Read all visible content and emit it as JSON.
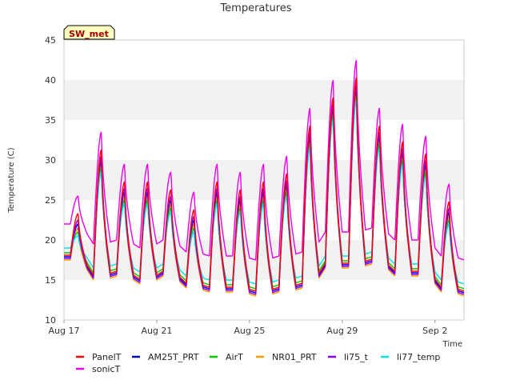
{
  "chart_data": {
    "type": "line",
    "title": "Temperatures",
    "xlabel": "Time",
    "ylabel": "Temperature (C)",
    "ylim": [
      10,
      45
    ],
    "xlim": [
      "2023-08-17",
      "2023-09-03"
    ],
    "grid": "horizontal bands",
    "legend_position": "bottom",
    "yticks": [
      10,
      15,
      20,
      25,
      30,
      35,
      40,
      45
    ],
    "xticks": [
      {
        "x": "2023-08-17",
        "label": "Aug 17"
      },
      {
        "x": "2023-08-21",
        "label": "Aug 21"
      },
      {
        "x": "2023-08-25",
        "label": "Aug 25"
      },
      {
        "x": "2023-08-29",
        "label": "Aug 29"
      },
      {
        "x": "2023-09-02",
        "label": "Sep 2"
      }
    ],
    "badge": "SW_met",
    "daily_extremes": [
      {
        "date": "2023-08-17",
        "min": 17.5,
        "max": 23.0
      },
      {
        "date": "2023-08-18",
        "min": 15.0,
        "max": 31.0
      },
      {
        "date": "2023-08-19",
        "min": 15.5,
        "max": 27.0
      },
      {
        "date": "2023-08-20",
        "min": 14.5,
        "max": 27.0
      },
      {
        "date": "2023-08-21",
        "min": 15.5,
        "max": 26.0
      },
      {
        "date": "2023-08-22",
        "min": 14.0,
        "max": 23.5
      },
      {
        "date": "2023-08-23",
        "min": 13.5,
        "max": 27.0
      },
      {
        "date": "2023-08-24",
        "min": 13.5,
        "max": 26.0
      },
      {
        "date": "2023-08-25",
        "min": 13.0,
        "max": 27.0
      },
      {
        "date": "2023-08-26",
        "min": 13.5,
        "max": 28.0
      },
      {
        "date": "2023-08-27",
        "min": 14.0,
        "max": 34.0
      },
      {
        "date": "2023-08-28",
        "min": 16.5,
        "max": 37.5
      },
      {
        "date": "2023-08-29",
        "min": 16.5,
        "max": 40.0
      },
      {
        "date": "2023-08-30",
        "min": 17.0,
        "max": 34.0
      },
      {
        "date": "2023-08-31",
        "min": 15.5,
        "max": 32.0
      },
      {
        "date": "2023-09-01",
        "min": 15.5,
        "max": 30.5
      },
      {
        "date": "2023-09-02",
        "min": 13.5,
        "max": 24.5
      },
      {
        "date": "2023-09-03",
        "min": 13.0,
        "max": 19.0
      }
    ],
    "series": [
      {
        "name": "PanelT",
        "color": "#ff0000",
        "min_offset": 0.6,
        "max_offset": 0.3
      },
      {
        "name": "AM25T_PRT",
        "color": "#0000cc",
        "min_offset": 0.4,
        "max_offset": -1.0
      },
      {
        "name": "AirT",
        "color": "#00cc00",
        "min_offset": 0.9,
        "max_offset": -2.0
      },
      {
        "name": "NR01_PRT",
        "color": "#ff9900",
        "min_offset": 0.0,
        "max_offset": -1.5
      },
      {
        "name": "li75_t",
        "color": "#8800ff",
        "min_offset": 0.2,
        "max_offset": -0.5
      },
      {
        "name": "li77_temp",
        "color": "#00e5e5",
        "min_offset": 1.5,
        "max_offset": -2.5
      },
      {
        "name": "sonicT",
        "color": "#ee00ee",
        "min_offset": 4.5,
        "max_offset": 2.5
      }
    ]
  }
}
